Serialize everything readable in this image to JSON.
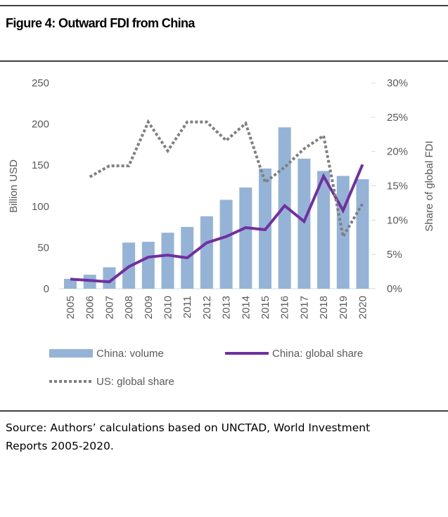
{
  "title": "Figure 4:  Outward FDI from China",
  "source": [
    "Source: Authors’ calculations based on UNCTAD, World Investment",
    "Reports 2005-2020."
  ],
  "chart_data": {
    "type": "bar_line",
    "ylabel": "Billion USD",
    "y2label": "Share of global FDI",
    "categories": [
      "2005",
      "2006",
      "2007",
      "2008",
      "2009",
      "2010",
      "2011",
      "2012",
      "2013",
      "2014",
      "2015",
      "2016",
      "2017",
      "2018",
      "2019",
      "2020"
    ],
    "ylim": [
      0,
      250
    ],
    "yticks": [
      0,
      50,
      100,
      150,
      200,
      250
    ],
    "y2lim": [
      0,
      30
    ],
    "y2ticks": [
      {
        "value": 0,
        "label": "0%"
      },
      {
        "value": 5,
        "label": "5%"
      },
      {
        "value": 10,
        "label": "10%"
      },
      {
        "value": 15,
        "label": "15%"
      },
      {
        "value": 20,
        "label": "20%"
      },
      {
        "value": 25,
        "label": "25%"
      },
      {
        "value": 30,
        "label": "30%"
      }
    ],
    "series": [
      {
        "name": "China: volume",
        "kind": "bar",
        "color": "#95b3d7",
        "values": [
          12,
          17,
          26,
          56,
          57,
          68,
          75,
          88,
          108,
          123,
          146,
          196,
          158,
          143,
          137,
          133
        ]
      },
      {
        "name": "China: global share",
        "kind": "line",
        "axis": "y2",
        "color": "#7030a0",
        "values": [
          1.4,
          1.2,
          1.0,
          3.2,
          4.6,
          4.9,
          4.5,
          6.7,
          7.6,
          8.9,
          8.6,
          12.1,
          9.8,
          16.4,
          11.4,
          18.1
        ]
      },
      {
        "name": "US: global share",
        "kind": "dotted",
        "axis": "y2",
        "color": "#808080",
        "values": [
          null,
          16.3,
          17.9,
          17.9,
          24.3,
          20.1,
          24.3,
          24.3,
          21.6,
          24.1,
          15.5,
          17.7,
          20.4,
          22.3,
          7.6,
          12.4
        ]
      }
    ]
  }
}
